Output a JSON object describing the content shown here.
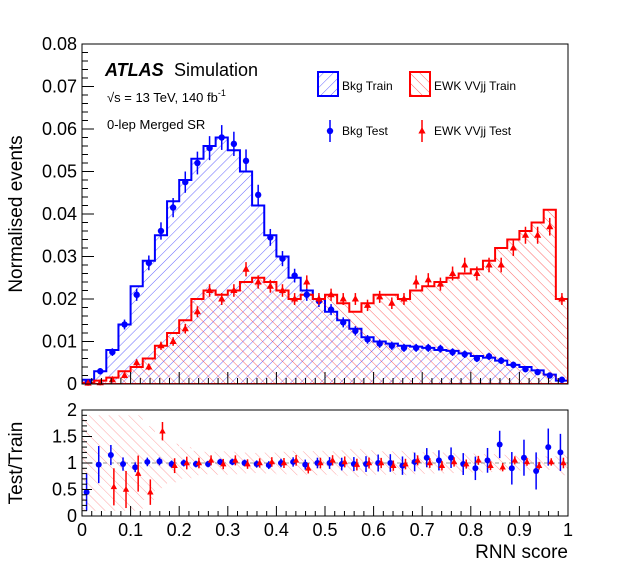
{
  "chart_data": {
    "type": "histogram",
    "x": [
      0.0125,
      0.0375,
      0.0625,
      0.0875,
      0.1125,
      0.1375,
      0.1625,
      0.1875,
      0.2125,
      0.2375,
      0.2625,
      0.2875,
      0.3125,
      0.3375,
      0.3625,
      0.3875,
      0.4125,
      0.4375,
      0.4625,
      0.4875,
      0.5125,
      0.5375,
      0.5625,
      0.5875,
      0.6125,
      0.6375,
      0.6625,
      0.6875,
      0.7125,
      0.7375,
      0.7625,
      0.7875,
      0.8125,
      0.8375,
      0.8625,
      0.8875,
      0.9125,
      0.9375,
      0.9625,
      0.9875
    ],
    "xlabel": "RNN score",
    "ylabel": "Normalised events",
    "xlim": [
      0,
      1
    ],
    "ylim": [
      0,
      0.08
    ],
    "ratio_ylabel": "Test/Train",
    "ratio_ylim": [
      0,
      2
    ],
    "xticks": [
      "0",
      "0.1",
      "0.2",
      "0.3",
      "0.4",
      "0.5",
      "0.6",
      "0.7",
      "0.8",
      "0.9",
      "1"
    ],
    "yticks": [
      "0",
      "0.01",
      "0.02",
      "0.03",
      "0.04",
      "0.05",
      "0.06",
      "0.07",
      "0.08"
    ],
    "ratio_yticks": [
      "0",
      "0.5",
      "1",
      "1.5",
      "2"
    ],
    "series": [
      {
        "name": "Bkg Train",
        "style": "hatched-histogram",
        "color": "#0000ff",
        "values": [
          0.001,
          0.003,
          0.008,
          0.014,
          0.023,
          0.029,
          0.035,
          0.043,
          0.048,
          0.053,
          0.056,
          0.058,
          0.055,
          0.05,
          0.042,
          0.035,
          0.03,
          0.025,
          0.022,
          0.02,
          0.017,
          0.015,
          0.013,
          0.011,
          0.01,
          0.0095,
          0.009,
          0.0088,
          0.0085,
          0.008,
          0.0078,
          0.0072,
          0.0066,
          0.0062,
          0.0055,
          0.0045,
          0.004,
          0.0032,
          0.0022,
          0.0008
        ]
      },
      {
        "name": "EWK VVjj Train",
        "style": "hatched-histogram",
        "color": "#ff0000",
        "values": [
          0.0003,
          0.0008,
          0.0015,
          0.003,
          0.004,
          0.006,
          0.009,
          0.012,
          0.015,
          0.02,
          0.022,
          0.021,
          0.022,
          0.024,
          0.025,
          0.024,
          0.022,
          0.02,
          0.021,
          0.02,
          0.021,
          0.019,
          0.017,
          0.019,
          0.021,
          0.021,
          0.02,
          0.022,
          0.023,
          0.024,
          0.025,
          0.026,
          0.027,
          0.029,
          0.032,
          0.034,
          0.036,
          0.038,
          0.041,
          0.02
        ]
      },
      {
        "name": "Bkg Test",
        "style": "points",
        "color": "#0000ff",
        "values": [
          0.0004,
          0.003,
          0.0075,
          0.014,
          0.021,
          0.0285,
          0.036,
          0.0415,
          0.0475,
          0.052,
          0.0555,
          0.058,
          0.0565,
          0.0525,
          0.0445,
          0.0345,
          0.0295,
          0.0255,
          0.021,
          0.0195,
          0.0175,
          0.0145,
          0.0125,
          0.0105,
          0.0095,
          0.009,
          0.0085,
          0.0085,
          0.0085,
          0.0083,
          0.0075,
          0.007,
          0.006,
          0.0065,
          0.0055,
          0.0045,
          0.0035,
          0.0028,
          0.002,
          0.001
        ]
      },
      {
        "name": "EWK VVjj Test",
        "style": "points",
        "color": "#ff0000",
        "values": [
          0.0002,
          0.0003,
          0.001,
          0.002,
          0.005,
          0.004,
          0.009,
          0.01,
          0.013,
          0.017,
          0.022,
          0.02,
          0.022,
          0.027,
          0.024,
          0.023,
          0.022,
          0.02,
          0.024,
          0.02,
          0.021,
          0.02,
          0.02,
          0.0185,
          0.0205,
          0.019,
          0.02,
          0.024,
          0.0245,
          0.0235,
          0.026,
          0.028,
          0.026,
          0.028,
          0.028,
          0.032,
          0.035,
          0.035,
          0.037,
          0.02
        ]
      }
    ],
    "ratio": [
      {
        "name": "Bkg Test",
        "color": "#0000ff",
        "values": [
          0.45,
          0.97,
          1.15,
          0.98,
          0.92,
          1.02,
          1.03,
          0.98,
          1.0,
          0.98,
          0.98,
          1.02,
          1.02,
          1.0,
          0.98,
          0.96,
          1.0,
          1.02,
          0.97,
          1.0,
          1.0,
          0.98,
          0.98,
          0.98,
          1.0,
          1.0,
          0.95,
          1.02,
          1.1,
          1.05,
          1.1,
          0.98,
          0.9,
          1.05,
          1.35,
          0.9,
          1.1,
          0.85,
          1.3,
          1.2
        ]
      },
      {
        "name": "EWK VVjj Test",
        "color": "#ff0000",
        "values": [
          null,
          null,
          0.55,
          0.5,
          0.8,
          0.45,
          1.6,
          0.95,
          1.0,
          1.0,
          1.05,
          0.98,
          1.05,
          0.98,
          1.0,
          1.02,
          1.0,
          1.05,
          0.9,
          1.0,
          1.05,
          1.02,
          0.97,
          1.0,
          1.0,
          0.95,
          0.98,
          1.05,
          1.0,
          0.95,
          1.02,
          0.98,
          1.05,
          0.95,
          0.92,
          1.05,
          1.02,
          0.95,
          1.02,
          1.0
        ]
      }
    ],
    "annotations": {
      "brand": "ATLAS",
      "brand_suffix": "Simulation",
      "energy_prefix": "√s = 13 TeV, 140 fb",
      "energy_sup": "-1",
      "region": "0-lep Merged SR"
    },
    "legend_placement": "top-right"
  }
}
